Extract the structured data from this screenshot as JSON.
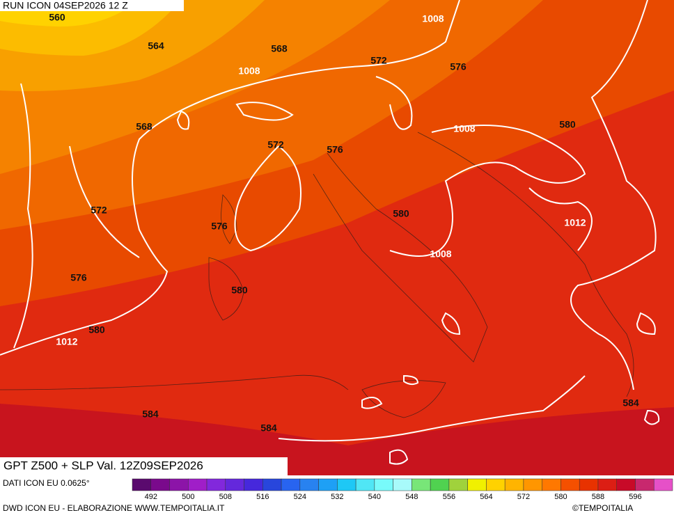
{
  "header": {
    "run": "RUN ICON 04SEP2026 12 Z",
    "title": "GPT Z500 + SLP Val. 12Z09SEP2026"
  },
  "contour_labels": [
    560,
    564,
    568,
    1008,
    572,
    576,
    1008,
    568,
    1008,
    580,
    572,
    576,
    572,
    576,
    580,
    1012,
    1008,
    576,
    580,
    580,
    1012,
    584,
    584,
    584
  ],
  "colorbar": {
    "colors": [
      "#5a0a6e",
      "#7a0a8c",
      "#8c14a8",
      "#a01ec8",
      "#8228dc",
      "#6428dc",
      "#4628dc",
      "#2846dc",
      "#2864f0",
      "#2882f0",
      "#1ea0f5",
      "#1ec8f5",
      "#50e6f5",
      "#78fafa",
      "#a8fafa",
      "#78e678",
      "#50d250",
      "#a0d23c",
      "#f0f000",
      "#ffd200",
      "#ffb400",
      "#ff9600",
      "#ff7800",
      "#f55000",
      "#e83200",
      "#dc1e14",
      "#c80a28",
      "#c8286e",
      "#e650c8"
    ],
    "ticks": [
      492,
      500,
      508,
      516,
      524,
      532,
      540,
      548,
      556,
      564,
      572,
      580,
      588,
      596
    ]
  },
  "footer": {
    "source": "DATI ICON EU 0.0625°",
    "credit": "DWD ICON EU - ELABORAZIONE WWW.TEMPOITALIA.IT",
    "copyright": "©TEMPOITALIA"
  }
}
